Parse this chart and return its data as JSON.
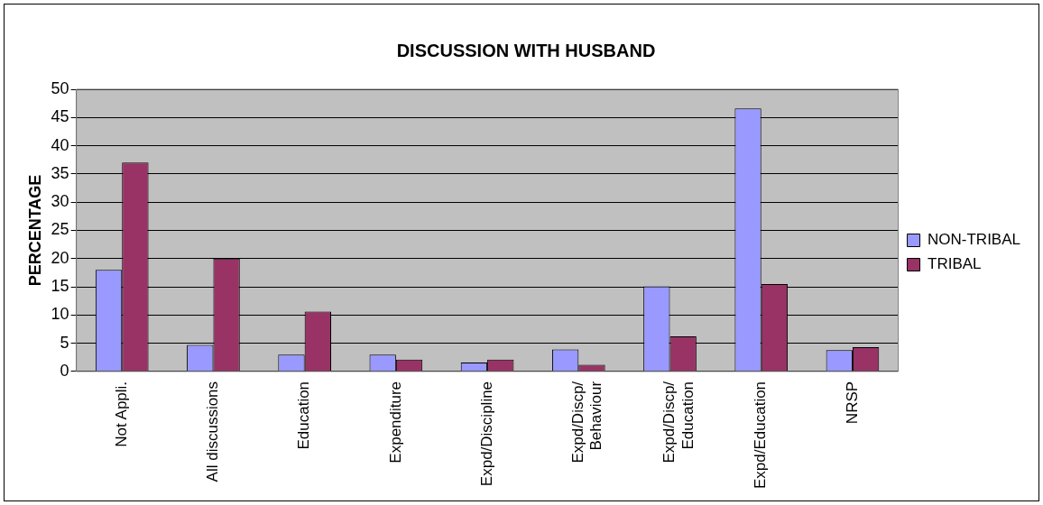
{
  "chart_data": {
    "type": "bar",
    "title": "DISCUSSION WITH HUSBAND",
    "ylabel": "PERCENTAGE",
    "categories": [
      "Not Appli.",
      "All discussions",
      "Education",
      "Expenditure",
      "Expd/Discipline",
      "Expd/Discp/\nBehaviour",
      "Expd/Discp/\nEducation",
      "Expd/Education",
      "NRSP"
    ],
    "series": [
      {
        "name": "NON-TRIBAL",
        "color": "#9999ff",
        "values": [
          18,
          4.7,
          3,
          3,
          1.6,
          3.9,
          15.1,
          46.6,
          3.8
        ]
      },
      {
        "name": "TRIBAL",
        "color": "#993366",
        "values": [
          37,
          20,
          10.6,
          2.1,
          2.1,
          1.2,
          6.2,
          15.5,
          4.3
        ]
      }
    ],
    "ylim": [
      0,
      50
    ],
    "yticks": [
      0,
      5,
      10,
      15,
      20,
      25,
      30,
      35,
      40,
      45,
      50
    ],
    "grid": "y",
    "legend": "right"
  }
}
